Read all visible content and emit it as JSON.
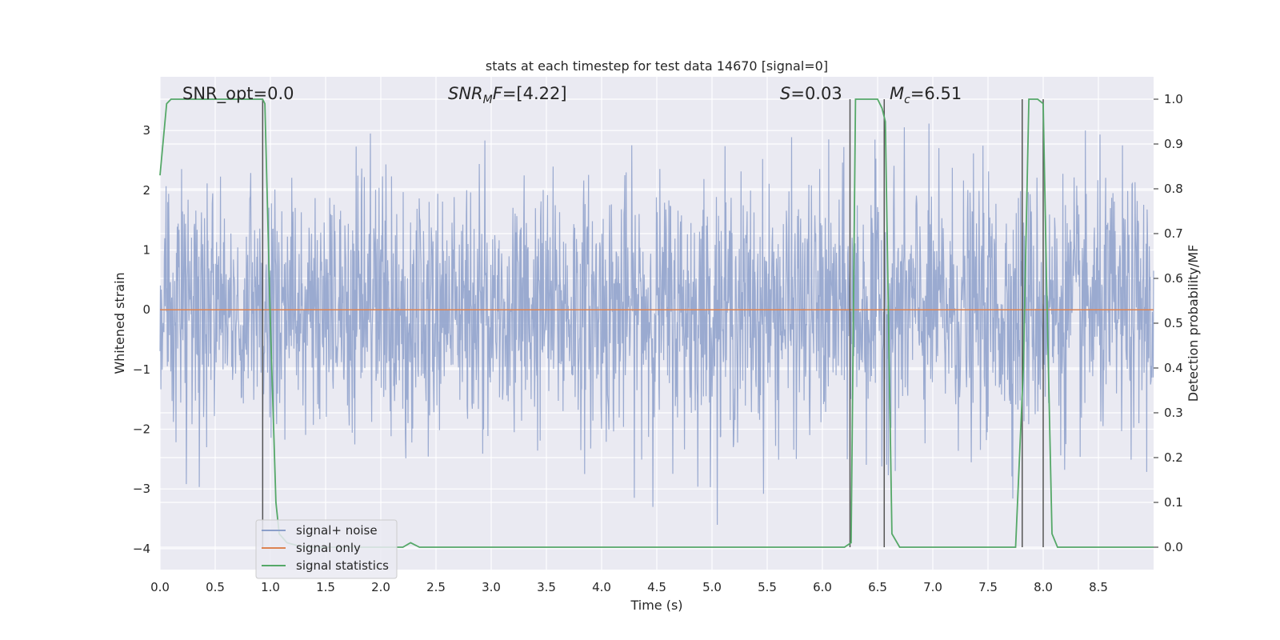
{
  "chart_data": {
    "type": "line",
    "title": "stats at each timestep for test data 14670 [signal=0]",
    "xlabel": "Time (s)",
    "ylabel": "Whitened strain",
    "y2label": "Detection probability/MF",
    "xlim": [
      0,
      9.0
    ],
    "ylim": [
      -4.35,
      3.9
    ],
    "y2lim": [
      -0.05,
      1.05
    ],
    "x_ticks": [
      "0.0",
      "0.5",
      "1.0",
      "1.5",
      "2.0",
      "2.5",
      "3.0",
      "3.5",
      "4.0",
      "4.5",
      "5.0",
      "5.5",
      "6.0",
      "6.5",
      "7.0",
      "7.5",
      "8.0",
      "8.5"
    ],
    "y_ticks": [
      "−4",
      "−3",
      "−2",
      "−1",
      "0",
      "1",
      "2",
      "3"
    ],
    "y2_ticks": [
      "0.0",
      "0.1",
      "0.2",
      "0.3",
      "0.4",
      "0.5",
      "0.6",
      "0.7",
      "0.8",
      "0.9",
      "1.0"
    ],
    "grid": true,
    "legend_position": "lower-left",
    "annotations": {
      "snr_opt": "SNR_opt=0.0",
      "snr_mf_name": "SNR",
      "snr_mf_sub": "M",
      "snr_mf_tail": "F=[4.22]",
      "s_name": "S",
      "s_value": "=0.03",
      "mc_name": "M",
      "mc_sub": "c",
      "mc_value": "=6.51"
    },
    "series": [
      {
        "name": "signal+ noise",
        "axis": "left",
        "color": "#8c9fca",
        "description_values": {
          "approx_range": [
            -3.6,
            3.4
          ],
          "x_range": [
            0,
            9.0
          ]
        }
      },
      {
        "name": "signal only",
        "axis": "left",
        "color": "#dd8452",
        "x": [
          0,
          9.0
        ],
        "y": [
          0,
          0
        ]
      },
      {
        "name": "signal statistics",
        "axis": "right",
        "color": "#55a868",
        "x": [
          0.0,
          0.06,
          0.1,
          0.15,
          0.2,
          0.5,
          0.8,
          0.93,
          0.95,
          1.0,
          1.05,
          1.08,
          1.15,
          1.3,
          2.0,
          2.2,
          2.27,
          2.35,
          3.0,
          4.0,
          4.3,
          5.0,
          6.0,
          6.2,
          6.26,
          6.3,
          6.35,
          6.5,
          6.54,
          6.57,
          6.63,
          6.7,
          7.0,
          7.5,
          7.75,
          7.82,
          7.87,
          7.9,
          7.95,
          8.0,
          8.03,
          8.08,
          8.13,
          8.5,
          9.0
        ],
        "y": [
          0.83,
          0.99,
          1.0,
          1.0,
          1.0,
          1.0,
          1.0,
          1.0,
          0.99,
          0.5,
          0.1,
          0.03,
          0.01,
          0.0,
          0.0,
          0.0,
          0.01,
          0.0,
          0.0,
          0.0,
          0.0,
          0.0,
          0.0,
          0.0,
          0.01,
          1.0,
          1.0,
          1.0,
          0.98,
          0.95,
          0.03,
          0.0,
          0.0,
          0.0,
          0.0,
          0.4,
          1.0,
          1.0,
          1.0,
          0.99,
          0.6,
          0.03,
          0.0,
          0.0,
          0.0
        ]
      }
    ],
    "vertical_markers_x": [
      0.93,
      6.25,
      6.56,
      7.81,
      8.0
    ]
  },
  "colors": {
    "plot_bg": "#eaeaf2",
    "grid": "#ffffff",
    "noise": "#8c9fca",
    "signal": "#dd8452",
    "stats": "#55a868",
    "marker": "#555555"
  }
}
